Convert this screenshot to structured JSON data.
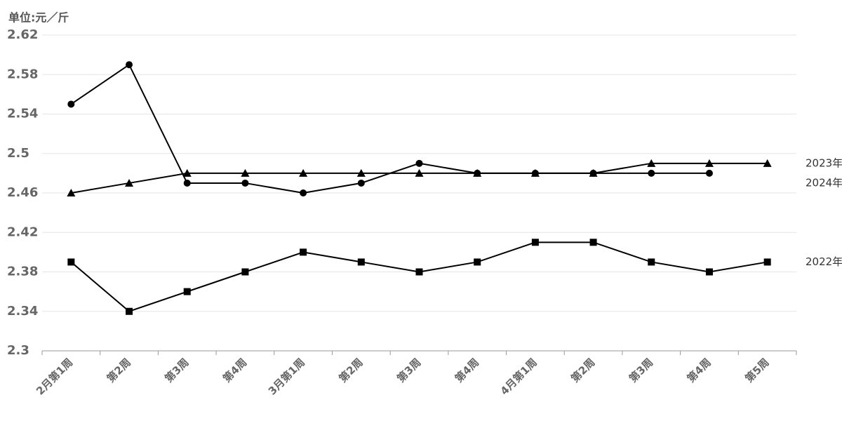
{
  "chart_data": {
    "type": "line",
    "unit_label": "单位:元／斤",
    "categories": [
      "2月第1周",
      "第2周",
      "第3周",
      "第4周",
      "3月第1周",
      "第2周",
      "第3周",
      "第4周",
      "4月第1周",
      "第2周",
      "第3周",
      "第4周",
      "第5周"
    ],
    "series": [
      {
        "name": "2023年",
        "color": "#000000",
        "marker": "triangle",
        "values": [
          2.46,
          2.47,
          2.48,
          2.48,
          2.48,
          2.48,
          2.48,
          2.48,
          2.48,
          2.48,
          2.49,
          2.49,
          2.49
        ]
      },
      {
        "name": "2024年",
        "color": "#000000",
        "marker": "circle",
        "values": [
          2.55,
          2.59,
          2.47,
          2.47,
          2.46,
          2.47,
          2.49,
          2.48,
          2.48,
          2.48,
          2.48,
          2.48,
          null
        ]
      },
      {
        "name": "2022年",
        "color": "#000000",
        "marker": "square",
        "values": [
          2.39,
          2.34,
          2.36,
          2.38,
          2.4,
          2.39,
          2.38,
          2.39,
          2.41,
          2.41,
          2.39,
          2.38,
          2.39
        ]
      }
    ],
    "ylim": [
      2.3,
      2.62
    ],
    "yticks": [
      2.3,
      2.34,
      2.38,
      2.42,
      2.46,
      2.5,
      2.54,
      2.58,
      2.62
    ],
    "grid": true
  }
}
